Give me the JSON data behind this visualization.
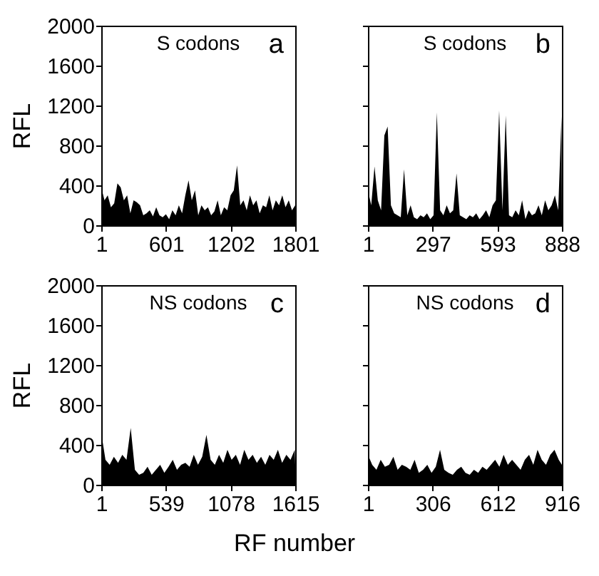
{
  "chart_data": [
    {
      "type": "area",
      "title": "S codons",
      "ylabel": "RFL",
      "annotations": [
        "a"
      ],
      "xlim": [
        1,
        1801
      ],
      "xticks": [
        1,
        601,
        1202,
        1801
      ],
      "ylim": [
        0,
        2000
      ],
      "yticks": [
        0,
        400,
        800,
        1200,
        1600,
        2000
      ],
      "grid": false,
      "series": [
        {
          "color": "#000000",
          "x": [
            1,
            31,
            61,
            91,
            121,
            151,
            181,
            211,
            241,
            271,
            301,
            331,
            361,
            391,
            421,
            451,
            481,
            511,
            541,
            571,
            601,
            631,
            661,
            691,
            721,
            751,
            781,
            811,
            841,
            871,
            901,
            931,
            961,
            991,
            1021,
            1051,
            1081,
            1111,
            1141,
            1171,
            1201,
            1231,
            1261,
            1291,
            1321,
            1351,
            1381,
            1411,
            1441,
            1471,
            1501,
            1531,
            1561,
            1591,
            1621,
            1651,
            1681,
            1711,
            1741,
            1771,
            1801
          ],
          "values": [
            380,
            250,
            300,
            180,
            220,
            420,
            380,
            250,
            300,
            120,
            250,
            230,
            200,
            100,
            120,
            150,
            90,
            180,
            100,
            80,
            110,
            60,
            150,
            100,
            200,
            120,
            300,
            450,
            250,
            350,
            100,
            200,
            150,
            180,
            100,
            140,
            250,
            100,
            180,
            150,
            300,
            350,
            600,
            200,
            250,
            150,
            300,
            200,
            250,
            120,
            200,
            180,
            300,
            150,
            250,
            200,
            300,
            180,
            250,
            150,
            200
          ]
        }
      ]
    },
    {
      "type": "area",
      "title": "S codons",
      "annotations": [
        "b"
      ],
      "xlim": [
        1,
        888
      ],
      "xticks": [
        1,
        297,
        593,
        888
      ],
      "ylim": [
        0,
        2000
      ],
      "yticks": [
        0,
        400,
        800,
        1200,
        1600,
        2000
      ],
      "tick_labels": "x",
      "grid": false,
      "series": [
        {
          "color": "#000000",
          "x": [
            1,
            16,
            31,
            46,
            61,
            76,
            91,
            106,
            121,
            136,
            151,
            166,
            181,
            196,
            211,
            226,
            241,
            256,
            271,
            286,
            301,
            316,
            331,
            346,
            361,
            376,
            391,
            406,
            421,
            436,
            451,
            466,
            481,
            496,
            511,
            526,
            541,
            556,
            571,
            586,
            601,
            616,
            631,
            646,
            661,
            676,
            691,
            706,
            721,
            736,
            751,
            766,
            781,
            796,
            811,
            826,
            841,
            856,
            871,
            886,
            888
          ],
          "values": [
            350,
            200,
            590,
            250,
            150,
            900,
            990,
            200,
            120,
            100,
            80,
            560,
            100,
            200,
            80,
            60,
            100,
            80,
            120,
            60,
            100,
            1130,
            150,
            100,
            200,
            120,
            150,
            520,
            100,
            80,
            60,
            100,
            80,
            120,
            60,
            100,
            150,
            80,
            200,
            250,
            1150,
            150,
            1100,
            100,
            80,
            150,
            100,
            250,
            60,
            150,
            100,
            120,
            200,
            100,
            250,
            150,
            200,
            300,
            150,
            1090,
            100
          ]
        }
      ]
    },
    {
      "type": "area",
      "title": "NS codons",
      "ylabel": "RFL",
      "xlabel": "RF number",
      "annotations": [
        "c"
      ],
      "xlim": [
        1,
        1615
      ],
      "xticks": [
        1,
        539,
        1078,
        1615
      ],
      "ylim": [
        0,
        2000
      ],
      "yticks": [
        0,
        400,
        800,
        1200,
        1600,
        2000
      ],
      "grid": false,
      "series": [
        {
          "color": "#000000",
          "x": [
            1,
            36,
            71,
            106,
            141,
            176,
            211,
            246,
            281,
            316,
            351,
            386,
            421,
            456,
            491,
            526,
            561,
            596,
            631,
            666,
            701,
            736,
            771,
            806,
            841,
            876,
            911,
            946,
            981,
            1016,
            1051,
            1086,
            1121,
            1156,
            1191,
            1226,
            1261,
            1296,
            1331,
            1366,
            1401,
            1436,
            1471,
            1506,
            1541,
            1576,
            1611,
            1615
          ],
          "values": [
            520,
            250,
            200,
            280,
            220,
            300,
            250,
            570,
            150,
            100,
            120,
            180,
            100,
            150,
            200,
            120,
            180,
            250,
            150,
            200,
            220,
            180,
            300,
            200,
            280,
            500,
            250,
            200,
            300,
            220,
            350,
            250,
            300,
            200,
            350,
            250,
            300,
            220,
            280,
            200,
            300,
            250,
            350,
            220,
            300,
            250,
            350,
            200
          ]
        }
      ]
    },
    {
      "type": "area",
      "title": "NS codons",
      "annotations": [
        "d"
      ],
      "xlim": [
        1,
        916
      ],
      "xticks": [
        1,
        306,
        612,
        916
      ],
      "ylim": [
        0,
        2000
      ],
      "yticks": [
        0,
        400,
        800,
        1200,
        1600,
        2000
      ],
      "tick_labels": "x",
      "grid": false,
      "series": [
        {
          "color": "#000000",
          "x": [
            1,
            21,
            41,
            61,
            81,
            101,
            121,
            141,
            161,
            181,
            201,
            221,
            241,
            261,
            281,
            301,
            321,
            341,
            361,
            381,
            401,
            421,
            441,
            461,
            481,
            501,
            521,
            541,
            561,
            581,
            601,
            621,
            641,
            661,
            681,
            701,
            721,
            741,
            761,
            781,
            801,
            821,
            841,
            861,
            881,
            901,
            916
          ],
          "values": [
            300,
            200,
            150,
            250,
            180,
            200,
            280,
            150,
            200,
            180,
            150,
            250,
            120,
            150,
            200,
            120,
            180,
            350,
            150,
            120,
            100,
            150,
            180,
            120,
            100,
            150,
            120,
            180,
            150,
            200,
            250,
            180,
            300,
            200,
            250,
            200,
            150,
            250,
            300,
            200,
            350,
            250,
            200,
            300,
            350,
            250,
            200
          ]
        }
      ]
    }
  ]
}
